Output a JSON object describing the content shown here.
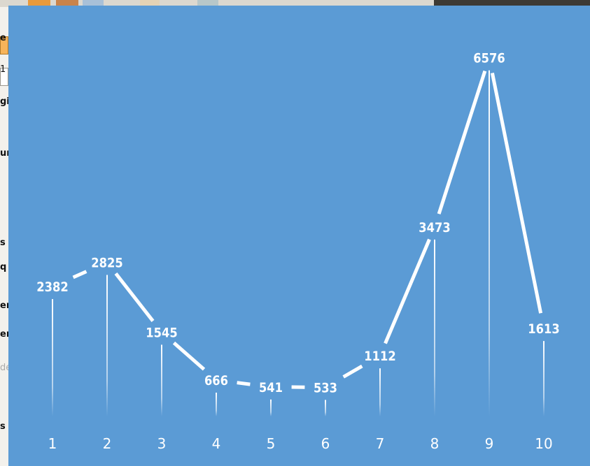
{
  "background_fragments": [
    "e",
    "1",
    "gi",
    "ur",
    "s",
    "q",
    "er",
    "en",
    "dé",
    "s"
  ],
  "chart_data": {
    "type": "line",
    "categories": [
      "1",
      "2",
      "3",
      "4",
      "5",
      "6",
      "7",
      "8",
      "9",
      "10"
    ],
    "series": [
      {
        "values": [
          2382,
          2825,
          1545,
          666,
          541,
          533,
          1112,
          3473,
          6576,
          1613
        ]
      }
    ],
    "title": "",
    "xlabel": "",
    "ylabel": "",
    "ylim": [
      0,
      7200
    ],
    "data_labels": true,
    "drop_lines": true,
    "grid": false,
    "legend": "none",
    "colors": {
      "background": "#5b9bd5",
      "line": "#ffffff",
      "text": "#ffffff"
    }
  }
}
